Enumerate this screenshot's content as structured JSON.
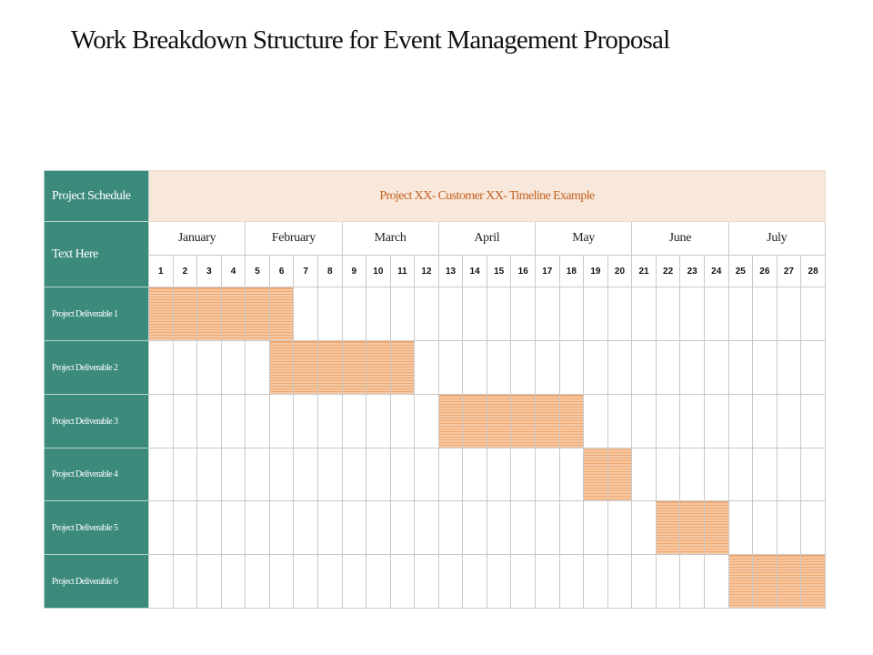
{
  "title": "Work Breakdown Structure for Event Management Proposal",
  "table": {
    "corner_label": "Project Schedule",
    "banner": "Project XX- Customer XX- Timeline Example",
    "month_row_label": "Text Here",
    "months": [
      {
        "name": "January",
        "weeks": 4
      },
      {
        "name": "February",
        "weeks": 4
      },
      {
        "name": "March",
        "weeks": 4
      },
      {
        "name": "April",
        "weeks": 4
      },
      {
        "name": "May",
        "weeks": 4
      },
      {
        "name": "June",
        "weeks": 4
      },
      {
        "name": "July",
        "weeks": 4
      }
    ],
    "weeks": [
      "1",
      "2",
      "3",
      "4",
      "5",
      "6",
      "7",
      "8",
      "9",
      "10",
      "11",
      "12",
      "13",
      "14",
      "15",
      "16",
      "17",
      "18",
      "19",
      "20",
      "21",
      "22",
      "23",
      "24",
      "25",
      "26",
      "27",
      "28"
    ],
    "bar_color": "#f0a870",
    "rows": [
      {
        "label": "Project Deliverable 1",
        "start_week": 1,
        "end_week": 6
      },
      {
        "label": "Project Deliverable 2",
        "start_week": 6,
        "end_week": 11
      },
      {
        "label": "Project Deliverable 3",
        "start_week": 13,
        "end_week": 18
      },
      {
        "label": "Project Deliverable 4",
        "start_week": 19,
        "end_week": 20
      },
      {
        "label": "Project Deliverable 5",
        "start_week": 22,
        "end_week": 24
      },
      {
        "label": "Project Deliverable 6",
        "start_week": 25,
        "end_week": 28
      }
    ]
  }
}
